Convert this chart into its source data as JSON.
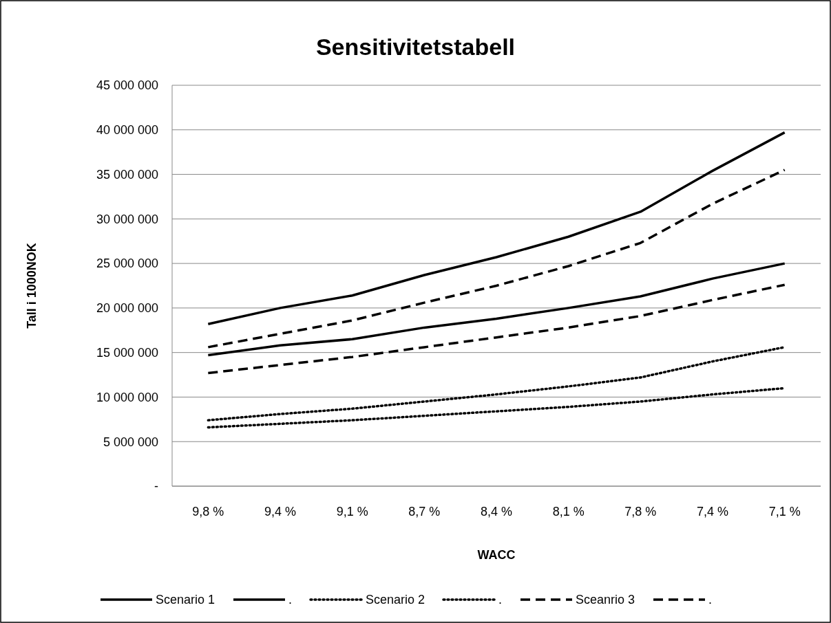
{
  "chart_data": {
    "type": "line",
    "title": "Sensitivitetstabell",
    "xlabel": "WACC",
    "ylabel": "Tall i 1000NOK",
    "categories": [
      "9,8 %",
      "9,4 %",
      "9,1 %",
      "8,7 %",
      "8,4 %",
      "8,1 %",
      "7,8 %",
      "7,4 %",
      "7,1 %"
    ],
    "series": [
      {
        "name": "Scenario 1",
        "color": "#000000",
        "line_style": "solid",
        "values": [
          18200000,
          20000000,
          21400000,
          23700000,
          25700000,
          28000000,
          30800000,
          35400000,
          39700000
        ]
      },
      {
        "name": ".",
        "color": "#000000",
        "line_style": "solid",
        "values": [
          14700000,
          15800000,
          16500000,
          17800000,
          18800000,
          20000000,
          21300000,
          23300000,
          25000000
        ]
      },
      {
        "name": "Scenario 2",
        "color": "#000000",
        "line_style": "dotted",
        "values": [
          7400000,
          8100000,
          8700000,
          9500000,
          10300000,
          11200000,
          12200000,
          14000000,
          15600000
        ]
      },
      {
        "name": ".",
        "color": "#000000",
        "line_style": "dotted",
        "values": [
          6600000,
          7000000,
          7400000,
          7900000,
          8400000,
          8900000,
          9500000,
          10300000,
          11000000
        ]
      },
      {
        "name": "Sceanrio 3",
        "color": "#000000",
        "line_style": "dashed",
        "values": [
          15600000,
          17100000,
          18600000,
          20600000,
          22500000,
          24700000,
          27300000,
          31700000,
          35500000
        ]
      },
      {
        "name": ".",
        "color": "#000000",
        "line_style": "dashed",
        "values": [
          12700000,
          13600000,
          14500000,
          15600000,
          16700000,
          17800000,
          19100000,
          20900000,
          22600000
        ]
      }
    ],
    "ylim": [
      0,
      45000000
    ],
    "yticks": [
      {
        "value": 0,
        "label": "-"
      },
      {
        "value": 5000000,
        "label": "5 000 000"
      },
      {
        "value": 10000000,
        "label": "10 000 000"
      },
      {
        "value": 15000000,
        "label": "15 000 000"
      },
      {
        "value": 20000000,
        "label": "20 000 000"
      },
      {
        "value": 25000000,
        "label": "25 000 000"
      },
      {
        "value": 30000000,
        "label": "30 000 000"
      },
      {
        "value": 35000000,
        "label": "35 000 000"
      },
      {
        "value": 40000000,
        "label": "40 000 000"
      },
      {
        "value": 45000000,
        "label": "45 000 000"
      }
    ],
    "grid": "y",
    "legend": "bottom",
    "marker": "none"
  }
}
